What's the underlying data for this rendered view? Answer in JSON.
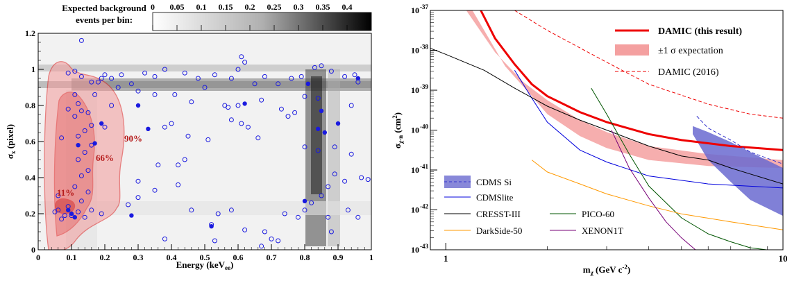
{
  "chart_data": [
    {
      "type": "scatter",
      "subtype": "2d-histogram-with-contours",
      "xlabel": "Energy (keV",
      "xlabel_sub": "ee",
      "xlabel_end": ")",
      "ylabel": "σ",
      "ylabel_sub": "x",
      "ylabel_end": " (pixel)",
      "xlim": [
        0,
        1
      ],
      "ylim": [
        0,
        1.2
      ],
      "x_ticks": [
        "0",
        "0.1",
        "0.2",
        "0.3",
        "0.4",
        "0.5",
        "0.6",
        "0.7",
        "0.8",
        "0.9",
        "1"
      ],
      "y_ticks": [
        "0",
        "0.2",
        "0.4",
        "0.6",
        "0.8",
        "1",
        "1.2"
      ],
      "colorbar": {
        "title_line1": "Expected background",
        "title_line2": "events per bin:",
        "range": [
          0,
          0.45
        ],
        "ticks": [
          "0",
          "0.05",
          "0.1",
          "0.15",
          "0.2",
          "0.25",
          "0.3",
          "0.35",
          "0.4"
        ]
      },
      "contour_labels": [
        "11%",
        "66%",
        "90%"
      ],
      "open_points": [
        [
          0.13,
          1.16
        ],
        [
          0.11,
          0.99
        ],
        [
          0.09,
          0.98
        ],
        [
          0.13,
          0.96
        ],
        [
          0.2,
          0.97
        ],
        [
          0.19,
          0.95
        ],
        [
          0.22,
          0.95
        ],
        [
          0.25,
          0.97
        ],
        [
          0.24,
          0.9
        ],
        [
          0.28,
          0.92
        ],
        [
          0.32,
          0.98
        ],
        [
          0.35,
          0.96
        ],
        [
          0.38,
          1.0
        ],
        [
          0.44,
          0.98
        ],
        [
          0.48,
          0.95
        ],
        [
          0.5,
          0.9
        ],
        [
          0.53,
          0.97
        ],
        [
          0.58,
          0.95
        ],
        [
          0.6,
          1.0
        ],
        [
          0.61,
          1.07
        ],
        [
          0.62,
          1.04
        ],
        [
          0.65,
          0.92
        ],
        [
          0.68,
          0.96
        ],
        [
          0.72,
          0.92
        ],
        [
          0.76,
          0.95
        ],
        [
          0.79,
          0.96
        ],
        [
          0.83,
          1.01
        ],
        [
          0.85,
          1.02
        ],
        [
          0.88,
          0.99
        ],
        [
          0.92,
          0.96
        ],
        [
          0.95,
          0.97
        ],
        [
          0.96,
          0.93
        ],
        [
          0.3,
          0.88
        ],
        [
          0.35,
          0.86
        ],
        [
          0.41,
          0.86
        ],
        [
          0.46,
          0.82
        ],
        [
          0.56,
          0.8
        ],
        [
          0.57,
          0.79
        ],
        [
          0.6,
          0.8
        ],
        [
          0.67,
          0.83
        ],
        [
          0.73,
          0.78
        ],
        [
          0.77,
          0.76
        ],
        [
          0.8,
          0.85
        ],
        [
          0.84,
          0.84
        ],
        [
          0.94,
          0.8
        ],
        [
          0.38,
          0.68
        ],
        [
          0.4,
          0.7
        ],
        [
          0.45,
          0.63
        ],
        [
          0.51,
          0.61
        ],
        [
          0.58,
          0.72
        ],
        [
          0.61,
          0.7
        ],
        [
          0.63,
          0.68
        ],
        [
          0.66,
          0.62
        ],
        [
          0.75,
          0.74
        ],
        [
          0.8,
          0.57
        ],
        [
          0.84,
          0.55
        ],
        [
          0.89,
          0.57
        ],
        [
          0.94,
          0.53
        ],
        [
          0.36,
          0.47
        ],
        [
          0.42,
          0.47
        ],
        [
          0.44,
          0.5
        ],
        [
          0.3,
          0.38
        ],
        [
          0.35,
          0.33
        ],
        [
          0.42,
          0.36
        ],
        [
          0.46,
          0.22
        ],
        [
          0.54,
          0.2
        ],
        [
          0.52,
          0.14
        ],
        [
          0.58,
          0.22
        ],
        [
          0.62,
          0.11
        ],
        [
          0.68,
          0.1
        ],
        [
          0.7,
          0.06
        ],
        [
          0.74,
          0.2
        ],
        [
          0.78,
          0.18
        ],
        [
          0.8,
          0.22
        ],
        [
          0.82,
          0.26
        ],
        [
          0.85,
          0.3
        ],
        [
          0.87,
          0.35
        ],
        [
          0.89,
          0.42
        ],
        [
          0.92,
          0.38
        ],
        [
          0.97,
          0.4
        ],
        [
          0.99,
          0.39
        ],
        [
          0.87,
          0.18
        ],
        [
          0.88,
          0.1
        ],
        [
          0.93,
          0.22
        ],
        [
          0.96,
          0.18
        ],
        [
          0.67,
          0.02
        ],
        [
          0.53,
          0.05
        ],
        [
          0.38,
          0.06
        ],
        [
          0.72,
          0.05
        ],
        [
          0.05,
          0.21
        ],
        [
          0.06,
          0.22
        ],
        [
          0.08,
          0.19
        ],
        [
          0.07,
          0.17
        ],
        [
          0.09,
          0.24
        ],
        [
          0.1,
          0.19
        ],
        [
          0.12,
          0.21
        ],
        [
          0.14,
          0.18
        ],
        [
          0.16,
          0.22
        ],
        [
          0.13,
          0.27
        ],
        [
          0.15,
          0.32
        ],
        [
          0.11,
          0.35
        ],
        [
          0.13,
          0.41
        ],
        [
          0.15,
          0.44
        ],
        [
          0.12,
          0.5
        ],
        [
          0.14,
          0.54
        ],
        [
          0.16,
          0.58
        ],
        [
          0.12,
          0.63
        ],
        [
          0.14,
          0.66
        ],
        [
          0.16,
          0.69
        ],
        [
          0.11,
          0.74
        ],
        [
          0.13,
          0.77
        ],
        [
          0.15,
          0.76
        ],
        [
          0.12,
          0.81
        ],
        [
          0.11,
          0.86
        ],
        [
          0.09,
          0.78
        ],
        [
          0.07,
          0.62
        ],
        [
          0.17,
          0.86
        ],
        [
          0.18,
          0.93
        ],
        [
          0.2,
          0.68
        ],
        [
          0.22,
          0.8
        ],
        [
          0.16,
          0.93
        ],
        [
          0.06,
          0.3
        ],
        [
          0.19,
          0.2
        ],
        [
          0.27,
          0.25
        ],
        [
          0.3,
          0.29
        ]
      ],
      "filled_points": [
        [
          0.1,
          0.2
        ],
        [
          0.09,
          0.22
        ],
        [
          0.11,
          0.18
        ],
        [
          0.12,
          0.58
        ],
        [
          0.17,
          0.59
        ],
        [
          0.19,
          0.7
        ],
        [
          0.3,
          0.8
        ],
        [
          0.33,
          0.67
        ],
        [
          0.28,
          0.19
        ],
        [
          0.52,
          0.13
        ],
        [
          0.62,
          0.81
        ],
        [
          0.81,
          0.92
        ],
        [
          0.85,
          0.77
        ],
        [
          0.86,
          0.65
        ],
        [
          0.9,
          0.7
        ],
        [
          0.84,
          0.67
        ],
        [
          0.96,
          0.95
        ],
        [
          0.8,
          0.27
        ]
      ]
    },
    {
      "type": "line",
      "xlabel": "m",
      "xlabel_sub": "χ",
      "xlabel_end": " (GeV c",
      "xlabel_sup": "-2",
      "xlabel_close": ")",
      "ylabel": "σ",
      "ylabel_sub": "χ-n",
      "ylabel_end": " (cm",
      "ylabel_sup": "2",
      "ylabel_close": ")",
      "x_scale": "log",
      "y_scale": "log",
      "xlim": [
        0.9,
        10.0
      ],
      "ylim": [
        1e-43,
        1e-37
      ],
      "x_ticks": [
        "1",
        "10"
      ],
      "y_ticks": [
        {
          "base": "10",
          "exp": "-37",
          "v": -37
        },
        {
          "base": "10",
          "exp": "-38",
          "v": -38
        },
        {
          "base": "10",
          "exp": "-39",
          "v": -39
        },
        {
          "base": "10",
          "exp": "-40",
          "v": -40
        },
        {
          "base": "10",
          "exp": "-41",
          "v": -41
        },
        {
          "base": "10",
          "exp": "-42",
          "v": -42
        },
        {
          "base": "10",
          "exp": "-43",
          "v": -43
        }
      ],
      "legend_top": [
        {
          "label": "DAMIC (this result)",
          "color": "#ee0000",
          "style": "thick"
        },
        {
          "label": "±1 σ expectation",
          "color": "#f4a0a0",
          "style": "band"
        },
        {
          "label": "DAMIC (2016)",
          "color": "#ee0000",
          "style": "dashed"
        }
      ],
      "legend_bottom": [
        {
          "label": "CDMS Si",
          "color": "#3333cc",
          "style": "band-dashed"
        },
        {
          "label": "CDMSlite",
          "color": "#0000dd",
          "style": "line"
        },
        {
          "label": "CRESST-III",
          "color": "#000000",
          "style": "line"
        },
        {
          "label": "PICO-60",
          "color": "#005500",
          "style": "line"
        },
        {
          "label": "DarkSide-50",
          "color": "#ff9900",
          "style": "line"
        },
        {
          "label": "XENON1T",
          "color": "#770077",
          "style": "line"
        }
      ],
      "series": [
        {
          "name": "DAMIC (this result)",
          "color": "#ee0000",
          "width": 3,
          "points": [
            [
              1.27,
              -37
            ],
            [
              1.4,
              -37.7
            ],
            [
              1.6,
              -38.35
            ],
            [
              1.8,
              -38.85
            ],
            [
              2.0,
              -39.15
            ],
            [
              2.5,
              -39.55
            ],
            [
              3.0,
              -39.8
            ],
            [
              4.0,
              -40.1
            ],
            [
              5.0,
              -40.25
            ],
            [
              7.0,
              -40.4
            ],
            [
              10.0,
              -40.5
            ]
          ]
        },
        {
          "name": "±1 σ expectation",
          "color": "#f4a0a0",
          "band": true,
          "upper": [
            [
              1.15,
              -37
            ],
            [
              1.4,
              -38.05
            ],
            [
              1.7,
              -38.8
            ],
            [
              2.0,
              -39.25
            ],
            [
              2.5,
              -39.75
            ],
            [
              3.0,
              -40.05
            ],
            [
              4.0,
              -40.4
            ],
            [
              6.0,
              -40.6
            ],
            [
              10.0,
              -40.75
            ]
          ],
          "lower": [
            [
              1.2,
              -37
            ],
            [
              1.5,
              -38.4
            ],
            [
              1.8,
              -39.15
            ],
            [
              2.0,
              -39.6
            ],
            [
              2.5,
              -40.15
            ],
            [
              3.0,
              -40.45
            ],
            [
              4.0,
              -40.75
            ],
            [
              6.0,
              -40.9
            ],
            [
              10.0,
              -40.95
            ]
          ]
        },
        {
          "name": "DAMIC (2016)",
          "color": "#ee0000",
          "dash": true,
          "width": 1,
          "points": [
            [
              1.6,
              -37
            ],
            [
              2.0,
              -37.5
            ],
            [
              3.0,
              -38.3
            ],
            [
              4.0,
              -38.85
            ],
            [
              6.0,
              -39.35
            ],
            [
              8.0,
              -39.6
            ],
            [
              10.0,
              -39.7
            ]
          ]
        },
        {
          "name": "CDMS Si",
          "color": "#3333cc",
          "dash": true,
          "width": 1,
          "points": [
            [
              5.55,
              -39.65
            ],
            [
              6.0,
              -39.95
            ],
            [
              7.0,
              -40.25
            ],
            [
              8.0,
              -40.55
            ],
            [
              10.0,
              -40.85
            ]
          ]
        },
        {
          "name": "CDMS Si band",
          "color": "#6a6ad0",
          "band": true,
          "upper": [
            [
              5.4,
              -39.9
            ],
            [
              6.0,
              -40.05
            ],
            [
              7.0,
              -40.3
            ],
            [
              8.0,
              -40.55
            ],
            [
              10.0,
              -40.95
            ]
          ],
          "lower": [
            [
              5.4,
              -40.1
            ],
            [
              6.0,
              -40.75
            ],
            [
              7.0,
              -41.3
            ],
            [
              8.0,
              -41.75
            ],
            [
              10.0,
              -42.15
            ]
          ]
        },
        {
          "name": "CDMSlite",
          "color": "#0000dd",
          "width": 1,
          "points": [
            [
              1.6,
              -38.5
            ],
            [
              1.8,
              -39.2
            ],
            [
              2.0,
              -39.8
            ],
            [
              2.5,
              -40.5
            ],
            [
              3.0,
              -40.8
            ],
            [
              4.0,
              -41.15
            ],
            [
              6.0,
              -41.35
            ],
            [
              10.0,
              -41.45
            ]
          ]
        },
        {
          "name": "CRESST-III",
          "color": "#000000",
          "width": 1,
          "points": [
            [
              0.9,
              -37.95
            ],
            [
              1.0,
              -38.1
            ],
            [
              1.3,
              -38.5
            ],
            [
              1.6,
              -38.95
            ],
            [
              2.0,
              -39.4
            ],
            [
              2.5,
              -39.75
            ],
            [
              3.0,
              -40.0
            ],
            [
              4.0,
              -40.4
            ],
            [
              5.0,
              -40.65
            ],
            [
              6.0,
              -40.75
            ],
            [
              7.0,
              -40.95
            ],
            [
              8.0,
              -41.1
            ],
            [
              10.0,
              -41.35
            ]
          ]
        },
        {
          "name": "PICO-60",
          "color": "#005500",
          "width": 1,
          "points": [
            [
              2.7,
              -38.95
            ],
            [
              3.0,
              -39.6
            ],
            [
              3.5,
              -40.6
            ],
            [
              4.0,
              -41.4
            ],
            [
              5.0,
              -42.2
            ],
            [
              6.0,
              -42.6
            ],
            [
              7.0,
              -42.8
            ],
            [
              8.0,
              -42.95
            ],
            [
              10.0,
              -43.05
            ]
          ]
        },
        {
          "name": "DarkSide-50",
          "color": "#ff9900",
          "width": 1,
          "points": [
            [
              1.8,
              -40.75
            ],
            [
              2.0,
              -41.05
            ],
            [
              2.5,
              -41.35
            ],
            [
              3.0,
              -41.6
            ],
            [
              4.0,
              -41.9
            ],
            [
              5.0,
              -42.1
            ],
            [
              7.0,
              -42.3
            ],
            [
              10.0,
              -42.5
            ]
          ]
        },
        {
          "name": "XENON1T",
          "color": "#770077",
          "width": 1,
          "points": [
            [
              3.1,
              -40.0
            ],
            [
              3.5,
              -40.95
            ],
            [
              4.0,
              -41.7
            ],
            [
              4.5,
              -42.3
            ],
            [
              5.0,
              -42.7
            ],
            [
              5.5,
              -43.0
            ]
          ]
        }
      ]
    }
  ]
}
